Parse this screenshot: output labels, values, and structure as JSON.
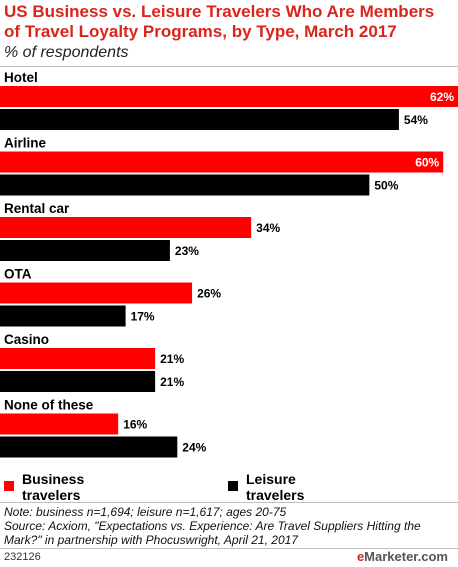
{
  "title": "US Business vs. Leisure Travelers Who Are Members of Travel Loyalty Programs, by Type, March 2017",
  "subtitle": "% of respondents",
  "chart_data": {
    "type": "bar",
    "orientation": "horizontal",
    "categories": [
      "Hotel",
      "Airline",
      "Rental car",
      "OTA",
      "Casino",
      "None of these"
    ],
    "series": [
      {
        "name": "Business travelers",
        "color": "#ff0000",
        "values": [
          62,
          60,
          34,
          26,
          21,
          16
        ],
        "labels": [
          "62%",
          "60%",
          "34%",
          "26%",
          "21%",
          "16%"
        ]
      },
      {
        "name": "Leisure travelers",
        "color": "#000000",
        "values": [
          54,
          50,
          23,
          17,
          21,
          24
        ],
        "labels": [
          "54%",
          "50%",
          "23%",
          "17%",
          "21%",
          "24%"
        ]
      }
    ],
    "xlim": [
      0,
      62
    ],
    "grid": false,
    "legend_position": "bottom"
  },
  "legend": {
    "business": "Business\ntravelers",
    "leisure": "Leisure\ntravelers"
  },
  "note": "Note: business n=1,694; leisure n=1,617; ages 20-75\nSource: Acxiom, \"Expectations vs. Experience: Are Travel Suppliers Hitting the Mark?\" in partnership with Phocuswright, April 21, 2017",
  "footer": {
    "id": "232126",
    "brand_e": "e",
    "brand_rest": "Marketer.com"
  }
}
